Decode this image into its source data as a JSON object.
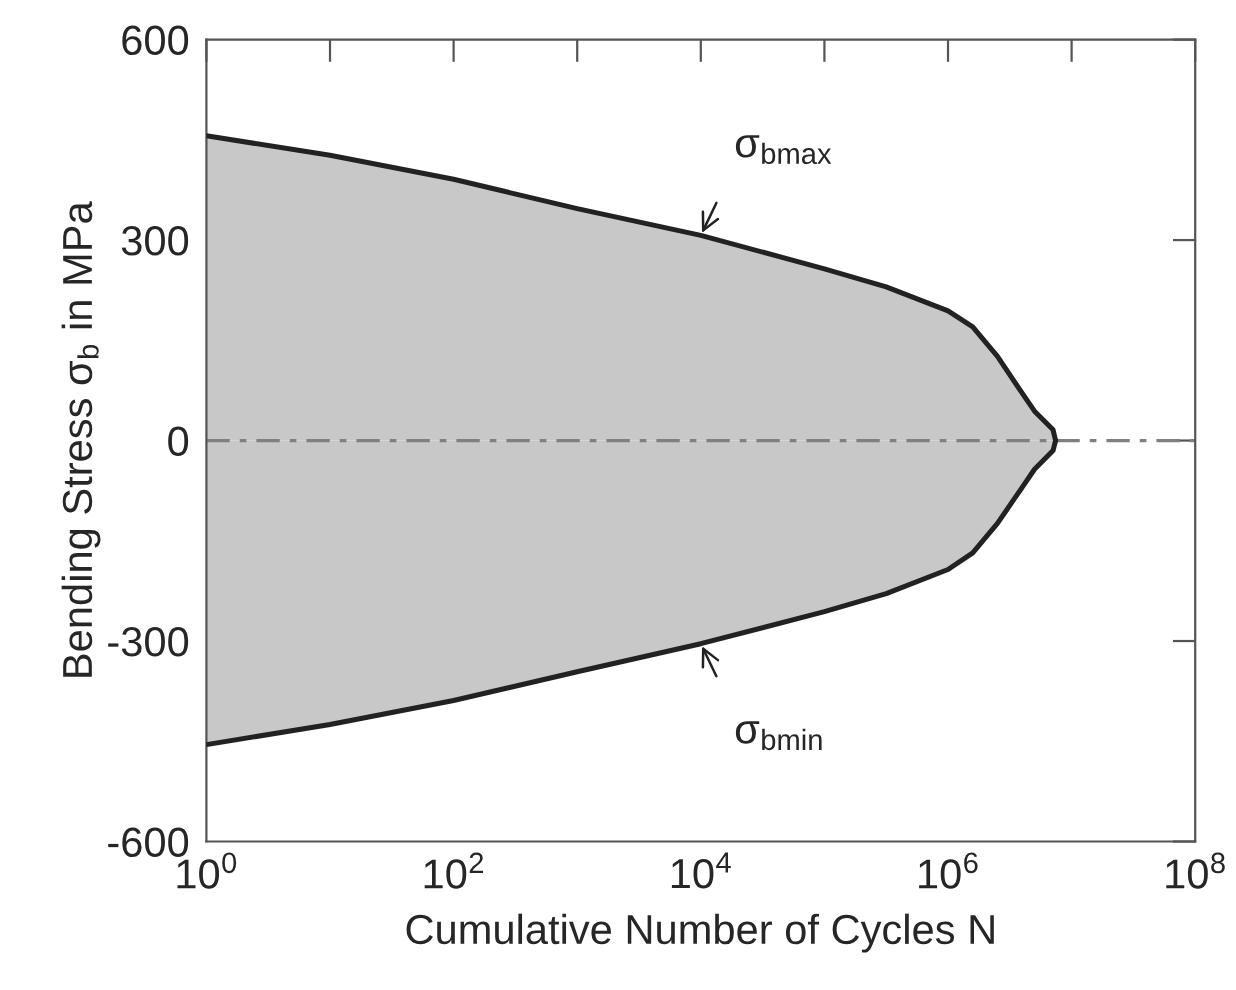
{
  "chart_data": {
    "type": "area",
    "xlabel": "Cumulative Number of Cycles N",
    "ylabel": "Bending Stress σ$_{b}$ in MPa",
    "log": "x",
    "series": [
      {
        "color": "#c8c8c8",
        "x": [
          1,
          10,
          100,
          1000,
          10000,
          100000,
          316228,
          1000000,
          1584893,
          2511886,
          3981072,
          5011872,
          7079458,
          7413102
        ],
        "values": [
          456,
          427,
          391,
          347,
          307,
          257,
          230,
          194,
          170,
          126,
          71,
          44,
          16,
          0
        ]
      },
      {
        "color": "#c8c8c8",
        "x": [
          1,
          10,
          100,
          1000,
          10000,
          100000,
          316228,
          1000000,
          1584893,
          2511886,
          3981072,
          5011872,
          7079458,
          7413102
        ],
        "values": [
          -455,
          -425,
          -389,
          -346,
          -304,
          -256,
          -229,
          -193,
          -168,
          -124,
          -70,
          -43,
          -15,
          0
        ]
      }
    ],
    "xlim": [
      1,
      100000000
    ],
    "ylim": [
      -600,
      600
    ],
    "xticks": [
      {
        "value": 1,
        "label": "10$^{0}$"
      },
      {
        "value": 10,
        "label": null
      },
      {
        "value": 100,
        "label": "10$^{2}$"
      },
      {
        "value": 1000,
        "label": null
      },
      {
        "value": 10000,
        "label": "10$^{4}$"
      },
      {
        "value": 100000,
        "label": null
      },
      {
        "value": 1000000,
        "label": "10$^{6}$"
      },
      {
        "value": 10000000,
        "label": null
      },
      {
        "value": 100000000,
        "label": "10$^{8}$"
      }
    ],
    "yticks": [
      {
        "value": -600,
        "label": "-600"
      },
      {
        "value": -300,
        "label": "-300"
      },
      0,
      300,
      600
    ],
    "ref_lines": [
      {
        "axis": "y",
        "value": 0,
        "color": "#808080",
        "line_style": "dashed"
      }
    ],
    "annotations": [
      {
        "text": "σ$_{bmax}$",
        "x": 10000,
        "y": 307
      },
      {
        "text": "σ$_{bmin}$",
        "x": 10000,
        "y": -304
      }
    ],
    "grid": false,
    "legend": false
  }
}
